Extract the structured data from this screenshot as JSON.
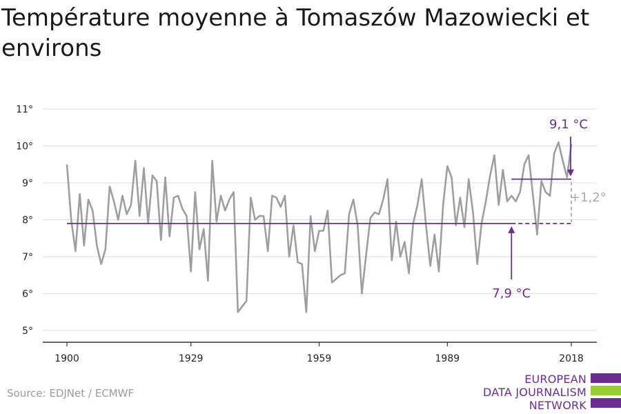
{
  "title": "Température moyenne à Tomaszów Mazowiecki et environs",
  "source": "Source: EDJNet / ECMWF",
  "logo": {
    "line1": "EUROPEAN",
    "line2": "DATA JOURNALISM",
    "line3": "NETWORK"
  },
  "colors": {
    "series": "#9e9e9e",
    "accent": "#6a2c91",
    "logo_green": "#9acd32",
    "grid": "#dcdcdc",
    "axis": "#333333"
  },
  "chart_data": {
    "type": "line",
    "title": "Température moyenne à Tomaszów Mazowiecki et environs",
    "xlabel": "",
    "ylabel": "",
    "xlim": [
      1900,
      2018
    ],
    "ylim": [
      5,
      11
    ],
    "x_ticks": [
      1900,
      1929,
      1959,
      1989,
      2018
    ],
    "y_ticks": [
      5,
      6,
      7,
      8,
      9,
      10,
      11
    ],
    "y_tick_labels": [
      "5°",
      "6°",
      "7°",
      "8°",
      "9°",
      "10°",
      "11°"
    ],
    "grid": true,
    "x": [
      1900,
      1901,
      1902,
      1903,
      1904,
      1905,
      1906,
      1907,
      1908,
      1909,
      1910,
      1911,
      1912,
      1913,
      1914,
      1915,
      1916,
      1917,
      1918,
      1919,
      1920,
      1921,
      1922,
      1923,
      1924,
      1925,
      1926,
      1927,
      1928,
      1929,
      1930,
      1931,
      1932,
      1933,
      1934,
      1935,
      1936,
      1937,
      1938,
      1939,
      1940,
      1941,
      1942,
      1943,
      1944,
      1945,
      1946,
      1947,
      1948,
      1949,
      1950,
      1951,
      1952,
      1953,
      1954,
      1955,
      1956,
      1957,
      1958,
      1959,
      1960,
      1961,
      1962,
      1963,
      1964,
      1965,
      1966,
      1967,
      1968,
      1969,
      1970,
      1971,
      1972,
      1973,
      1974,
      1975,
      1976,
      1977,
      1978,
      1979,
      1980,
      1981,
      1982,
      1983,
      1984,
      1985,
      1986,
      1987,
      1988,
      1989,
      1990,
      1991,
      1992,
      1993,
      1994,
      1995,
      1996,
      1997,
      1998,
      1999,
      2000,
      2001,
      2002,
      2003,
      2004,
      2005,
      2006,
      2007,
      2008,
      2009,
      2010,
      2011,
      2012,
      2013,
      2014,
      2015,
      2016,
      2017,
      2018
    ],
    "values": [
      9.5,
      8.0,
      7.15,
      8.7,
      7.3,
      8.55,
      8.25,
      7.3,
      6.8,
      7.2,
      8.9,
      8.5,
      8.0,
      8.65,
      8.15,
      8.4,
      9.6,
      8.1,
      9.4,
      7.9,
      9.2,
      9.05,
      7.45,
      9.15,
      7.55,
      8.6,
      8.65,
      8.3,
      8.1,
      6.6,
      8.75,
      7.2,
      7.75,
      6.35,
      9.6,
      7.95,
      8.65,
      8.25,
      8.55,
      8.75,
      5.5,
      5.65,
      5.8,
      8.6,
      8.0,
      8.1,
      8.1,
      7.15,
      8.65,
      8.6,
      8.35,
      8.65,
      7.0,
      7.85,
      6.85,
      6.8,
      5.5,
      8.1,
      7.15,
      7.7,
      7.7,
      8.25,
      6.3,
      6.4,
      6.5,
      6.55,
      8.15,
      8.55,
      7.85,
      6.0,
      7.05,
      8.05,
      8.2,
      8.15,
      8.55,
      9.1,
      6.9,
      7.95,
      7.0,
      7.4,
      6.55,
      7.9,
      8.4,
      9.1,
      7.85,
      6.75,
      7.6,
      6.6,
      8.4,
      9.45,
      9.15,
      7.85,
      8.6,
      7.8,
      9.1,
      8.2,
      6.8,
      7.9,
      8.5,
      9.2,
      9.75,
      8.4,
      9.35,
      8.5,
      8.65,
      8.5,
      8.75,
      9.5,
      9.75,
      8.7,
      7.6,
      9.05,
      8.75,
      8.65,
      9.8,
      10.1,
      9.6,
      9.15,
      10.05
    ],
    "baseline": {
      "value": 7.9,
      "label": "7,9 °C",
      "x_start": 1900,
      "x_end": 2018,
      "solid_until": 2004
    },
    "recent": {
      "value": 9.1,
      "label": "9,1 °C",
      "x_start": 2004,
      "x_end": 2018
    },
    "difference_label": "+1,2°"
  }
}
